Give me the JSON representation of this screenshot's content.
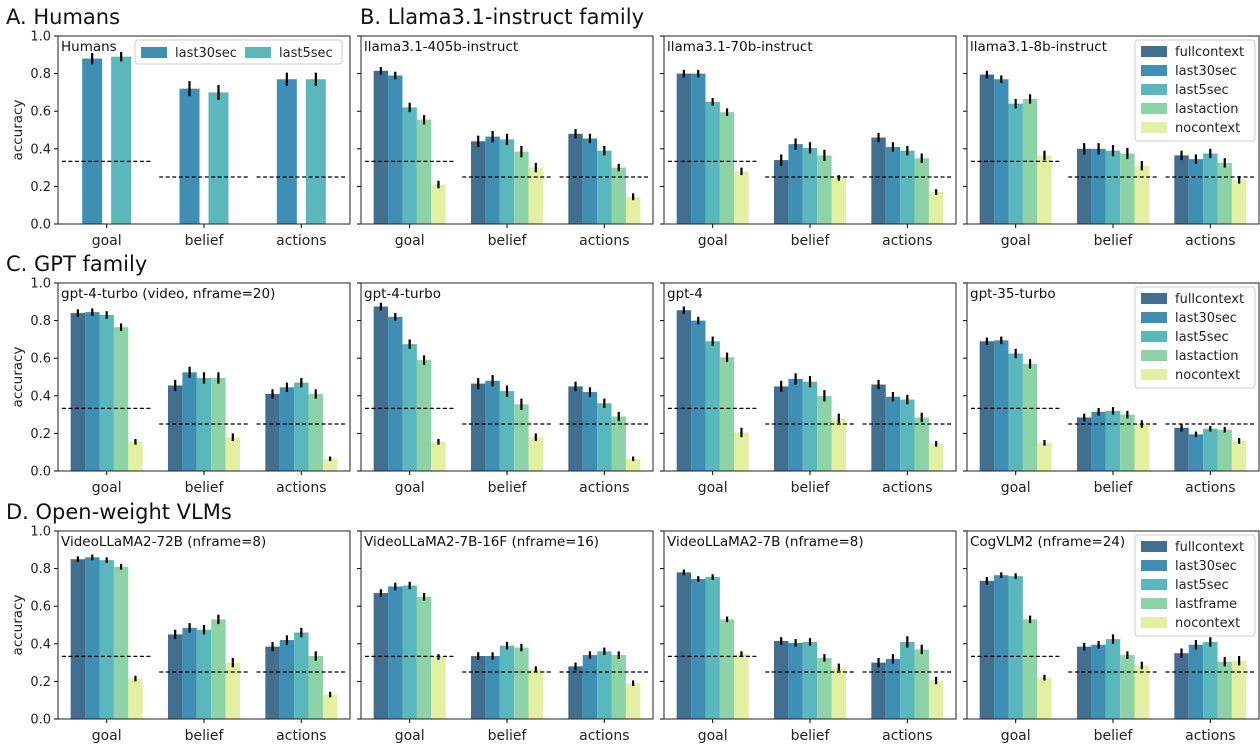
{
  "sections": [
    "A. Humans",
    "B. Llama3.1-instruct family",
    "C. GPT family",
    "D. Open-weight VLMs"
  ],
  "ylabel": "accuracy",
  "categories": [
    "goal",
    "belief",
    "actions"
  ],
  "yticks": [
    "0.0",
    "0.2",
    "0.4",
    "0.6",
    "0.8",
    "1.0"
  ],
  "colors": {
    "fullcontext": "#426e90",
    "last30sec": "#3f8fb5",
    "last5sec": "#5ab7bb",
    "lastaction": "#8dd3a7",
    "lastframe": "#8dd3a7",
    "nocontext": "#e3f0a3",
    "chance_line": "#000000",
    "error_bar": "#000000"
  },
  "chart_data": [
    {
      "type": "bar",
      "title": "Humans",
      "categories": [
        "goal",
        "belief",
        "actions"
      ],
      "ylim": [
        0,
        1
      ],
      "ylabel": "accuracy",
      "series": [
        {
          "name": "last30sec",
          "values": [
            0.88,
            0.72,
            0.77
          ],
          "errors": [
            0.03,
            0.04,
            0.035
          ]
        },
        {
          "name": "last5sec",
          "values": [
            0.89,
            0.7,
            0.77
          ],
          "errors": [
            0.025,
            0.04,
            0.035
          ]
        }
      ],
      "chance": [
        0.333,
        0.25,
        0.25
      ],
      "legend": "top-center"
    },
    {
      "type": "bar",
      "title": "llama3.1-405b-instruct",
      "categories": [
        "goal",
        "belief",
        "actions"
      ],
      "ylim": [
        0,
        1
      ],
      "series": [
        {
          "name": "fullcontext",
          "values": [
            0.815,
            0.44,
            0.48
          ],
          "errors": [
            0.02,
            0.03,
            0.025
          ]
        },
        {
          "name": "last30sec",
          "values": [
            0.79,
            0.465,
            0.455
          ],
          "errors": [
            0.02,
            0.03,
            0.025
          ]
        },
        {
          "name": "last5sec",
          "values": [
            0.62,
            0.45,
            0.39
          ],
          "errors": [
            0.025,
            0.03,
            0.025
          ]
        },
        {
          "name": "lastaction",
          "values": [
            0.555,
            0.385,
            0.3
          ],
          "errors": [
            0.025,
            0.03,
            0.02
          ]
        },
        {
          "name": "nocontext",
          "values": [
            0.21,
            0.3,
            0.145
          ],
          "errors": [
            0.02,
            0.025,
            0.018
          ]
        }
      ],
      "chance": [
        0.333,
        0.25,
        0.25
      ]
    },
    {
      "type": "bar",
      "title": "llama3.1-70b-instruct",
      "categories": [
        "goal",
        "belief",
        "actions"
      ],
      "ylim": [
        0,
        1
      ],
      "series": [
        {
          "name": "fullcontext",
          "values": [
            0.8,
            0.34,
            0.46
          ],
          "errors": [
            0.02,
            0.03,
            0.025
          ]
        },
        {
          "name": "last30sec",
          "values": [
            0.8,
            0.425,
            0.41
          ],
          "errors": [
            0.02,
            0.03,
            0.025
          ]
        },
        {
          "name": "last5sec",
          "values": [
            0.65,
            0.405,
            0.39
          ],
          "errors": [
            0.02,
            0.03,
            0.025
          ]
        },
        {
          "name": "lastaction",
          "values": [
            0.595,
            0.365,
            0.35
          ],
          "errors": [
            0.02,
            0.03,
            0.025
          ]
        },
        {
          "name": "nocontext",
          "values": [
            0.28,
            0.245,
            0.17
          ],
          "errors": [
            0.02,
            0.015,
            0.015
          ]
        }
      ],
      "chance": [
        0.333,
        0.25,
        0.25
      ]
    },
    {
      "type": "bar",
      "title": "llama3.1-8b-instruct",
      "categories": [
        "goal",
        "belief",
        "actions"
      ],
      "ylim": [
        0,
        1
      ],
      "series": [
        {
          "name": "fullcontext",
          "values": [
            0.795,
            0.4,
            0.365
          ],
          "errors": [
            0.02,
            0.03,
            0.025
          ]
        },
        {
          "name": "last30sec",
          "values": [
            0.77,
            0.4,
            0.345
          ],
          "errors": [
            0.02,
            0.03,
            0.025
          ]
        },
        {
          "name": "last5sec",
          "values": [
            0.64,
            0.39,
            0.375
          ],
          "errors": [
            0.025,
            0.03,
            0.025
          ]
        },
        {
          "name": "lastaction",
          "values": [
            0.665,
            0.375,
            0.325
          ],
          "errors": [
            0.025,
            0.03,
            0.025
          ]
        },
        {
          "name": "nocontext",
          "values": [
            0.365,
            0.31,
            0.235
          ],
          "errors": [
            0.025,
            0.025,
            0.02
          ]
        }
      ],
      "chance": [
        0.333,
        0.25,
        0.25
      ],
      "legend": "top-right"
    },
    {
      "type": "bar",
      "title": "gpt-4-turbo (video, nframe=20)",
      "categories": [
        "goal",
        "belief",
        "actions"
      ],
      "ylim": [
        0,
        1
      ],
      "series": [
        {
          "name": "fullcontext",
          "values": [
            0.84,
            0.455,
            0.41
          ],
          "errors": [
            0.02,
            0.03,
            0.025
          ]
        },
        {
          "name": "last30sec",
          "values": [
            0.845,
            0.525,
            0.445
          ],
          "errors": [
            0.02,
            0.03,
            0.025
          ]
        },
        {
          "name": "last5sec",
          "values": [
            0.83,
            0.495,
            0.47
          ],
          "errors": [
            0.02,
            0.03,
            0.025
          ]
        },
        {
          "name": "lastaction",
          "values": [
            0.765,
            0.495,
            0.41
          ],
          "errors": [
            0.02,
            0.03,
            0.025
          ]
        },
        {
          "name": "nocontext",
          "values": [
            0.155,
            0.18,
            0.065
          ],
          "errors": [
            0.015,
            0.02,
            0.012
          ]
        }
      ],
      "chance": [
        0.333,
        0.25,
        0.25
      ]
    },
    {
      "type": "bar",
      "title": "gpt-4-turbo",
      "categories": [
        "goal",
        "belief",
        "actions"
      ],
      "ylim": [
        0,
        1
      ],
      "series": [
        {
          "name": "fullcontext",
          "values": [
            0.875,
            0.465,
            0.45
          ],
          "errors": [
            0.02,
            0.03,
            0.025
          ]
        },
        {
          "name": "last30sec",
          "values": [
            0.82,
            0.48,
            0.42
          ],
          "errors": [
            0.02,
            0.03,
            0.025
          ]
        },
        {
          "name": "last5sec",
          "values": [
            0.675,
            0.425,
            0.36
          ],
          "errors": [
            0.025,
            0.03,
            0.025
          ]
        },
        {
          "name": "lastaction",
          "values": [
            0.59,
            0.355,
            0.29
          ],
          "errors": [
            0.025,
            0.03,
            0.025
          ]
        },
        {
          "name": "nocontext",
          "values": [
            0.155,
            0.18,
            0.065
          ],
          "errors": [
            0.015,
            0.02,
            0.012
          ]
        }
      ],
      "chance": [
        0.333,
        0.25,
        0.25
      ]
    },
    {
      "type": "bar",
      "title": "gpt-4",
      "categories": [
        "goal",
        "belief",
        "actions"
      ],
      "ylim": [
        0,
        1
      ],
      "series": [
        {
          "name": "fullcontext",
          "values": [
            0.855,
            0.45,
            0.46
          ],
          "errors": [
            0.02,
            0.03,
            0.025
          ]
        },
        {
          "name": "last30sec",
          "values": [
            0.8,
            0.49,
            0.395
          ],
          "errors": [
            0.02,
            0.03,
            0.025
          ]
        },
        {
          "name": "last5sec",
          "values": [
            0.69,
            0.475,
            0.38
          ],
          "errors": [
            0.025,
            0.03,
            0.025
          ]
        },
        {
          "name": "lastaction",
          "values": [
            0.605,
            0.4,
            0.285
          ],
          "errors": [
            0.025,
            0.03,
            0.025
          ]
        },
        {
          "name": "nocontext",
          "values": [
            0.205,
            0.28,
            0.145
          ],
          "errors": [
            0.025,
            0.025,
            0.015
          ]
        }
      ],
      "chance": [
        0.333,
        0.25,
        0.25
      ]
    },
    {
      "type": "bar",
      "title": "gpt-35-turbo",
      "categories": [
        "goal",
        "belief",
        "actions"
      ],
      "ylim": [
        0,
        1
      ],
      "series": [
        {
          "name": "fullcontext",
          "values": [
            0.69,
            0.285,
            0.23
          ],
          "errors": [
            0.02,
            0.02,
            0.02
          ]
        },
        {
          "name": "last30sec",
          "values": [
            0.695,
            0.315,
            0.195
          ],
          "errors": [
            0.02,
            0.02,
            0.015
          ]
        },
        {
          "name": "last5sec",
          "values": [
            0.625,
            0.32,
            0.225
          ],
          "errors": [
            0.025,
            0.02,
            0.015
          ]
        },
        {
          "name": "lastaction",
          "values": [
            0.57,
            0.3,
            0.22
          ],
          "errors": [
            0.025,
            0.02,
            0.015
          ]
        },
        {
          "name": "nocontext",
          "values": [
            0.15,
            0.25,
            0.16
          ],
          "errors": [
            0.015,
            0.02,
            0.015
          ]
        }
      ],
      "chance": [
        0.333,
        0.25,
        0.25
      ],
      "legend": "top-right"
    },
    {
      "type": "bar",
      "title": "VideoLLaMA2-72B (nframe=8)",
      "categories": [
        "goal",
        "belief",
        "actions"
      ],
      "ylim": [
        0,
        1
      ],
      "series": [
        {
          "name": "fullcontext",
          "values": [
            0.85,
            0.45,
            0.385
          ],
          "errors": [
            0.015,
            0.025,
            0.025
          ]
        },
        {
          "name": "last30sec",
          "values": [
            0.86,
            0.485,
            0.42
          ],
          "errors": [
            0.015,
            0.025,
            0.025
          ]
        },
        {
          "name": "last5sec",
          "values": [
            0.845,
            0.475,
            0.46
          ],
          "errors": [
            0.015,
            0.025,
            0.025
          ]
        },
        {
          "name": "lastframe",
          "values": [
            0.81,
            0.53,
            0.335
          ],
          "errors": [
            0.015,
            0.025,
            0.025
          ]
        },
        {
          "name": "nocontext",
          "values": [
            0.215,
            0.3,
            0.13
          ],
          "errors": [
            0.015,
            0.025,
            0.015
          ]
        }
      ],
      "chance": [
        0.333,
        0.25,
        0.25
      ]
    },
    {
      "type": "bar",
      "title": "VideoLLaMA2-7B-16F (nframe=16)",
      "categories": [
        "goal",
        "belief",
        "actions"
      ],
      "ylim": [
        0,
        1
      ],
      "series": [
        {
          "name": "fullcontext",
          "values": [
            0.67,
            0.335,
            0.28
          ],
          "errors": [
            0.02,
            0.02,
            0.02
          ]
        },
        {
          "name": "last30sec",
          "values": [
            0.705,
            0.335,
            0.34
          ],
          "errors": [
            0.02,
            0.02,
            0.02
          ]
        },
        {
          "name": "last5sec",
          "values": [
            0.71,
            0.39,
            0.36
          ],
          "errors": [
            0.02,
            0.02,
            0.02
          ]
        },
        {
          "name": "lastframe",
          "values": [
            0.65,
            0.38,
            0.34
          ],
          "errors": [
            0.02,
            0.02,
            0.02
          ]
        },
        {
          "name": "nocontext",
          "values": [
            0.33,
            0.265,
            0.19
          ],
          "errors": [
            0.015,
            0.015,
            0.015
          ]
        }
      ],
      "chance": [
        0.333,
        0.25,
        0.25
      ]
    },
    {
      "type": "bar",
      "title": "VideoLLaMA2-7B (nframe=8)",
      "categories": [
        "goal",
        "belief",
        "actions"
      ],
      "ylim": [
        0,
        1
      ],
      "series": [
        {
          "name": "fullcontext",
          "values": [
            0.78,
            0.415,
            0.3
          ],
          "errors": [
            0.015,
            0.02,
            0.025
          ]
        },
        {
          "name": "last30sec",
          "values": [
            0.745,
            0.405,
            0.32
          ],
          "errors": [
            0.015,
            0.02,
            0.025
          ]
        },
        {
          "name": "last5sec",
          "values": [
            0.755,
            0.41,
            0.41
          ],
          "errors": [
            0.015,
            0.02,
            0.03
          ]
        },
        {
          "name": "lastframe",
          "values": [
            0.53,
            0.325,
            0.37
          ],
          "errors": [
            0.015,
            0.02,
            0.025
          ]
        },
        {
          "name": "nocontext",
          "values": [
            0.345,
            0.275,
            0.205
          ],
          "errors": [
            0.015,
            0.02,
            0.02
          ]
        }
      ],
      "chance": [
        0.333,
        0.25,
        0.25
      ]
    },
    {
      "type": "bar",
      "title": "CogVLM2 (nframe=24)",
      "categories": [
        "goal",
        "belief",
        "actions"
      ],
      "ylim": [
        0,
        1
      ],
      "series": [
        {
          "name": "fullcontext",
          "values": [
            0.735,
            0.385,
            0.35
          ],
          "errors": [
            0.02,
            0.02,
            0.025
          ]
        },
        {
          "name": "last30sec",
          "values": [
            0.765,
            0.395,
            0.395
          ],
          "errors": [
            0.015,
            0.02,
            0.025
          ]
        },
        {
          "name": "last5sec",
          "values": [
            0.76,
            0.425,
            0.41
          ],
          "errors": [
            0.015,
            0.025,
            0.025
          ]
        },
        {
          "name": "lastframe",
          "values": [
            0.53,
            0.34,
            0.305
          ],
          "errors": [
            0.02,
            0.02,
            0.025
          ]
        },
        {
          "name": "nocontext",
          "values": [
            0.22,
            0.285,
            0.31
          ],
          "errors": [
            0.015,
            0.02,
            0.025
          ]
        }
      ],
      "chance": [
        0.333,
        0.25,
        0.25
      ],
      "legend": "top-right"
    }
  ]
}
